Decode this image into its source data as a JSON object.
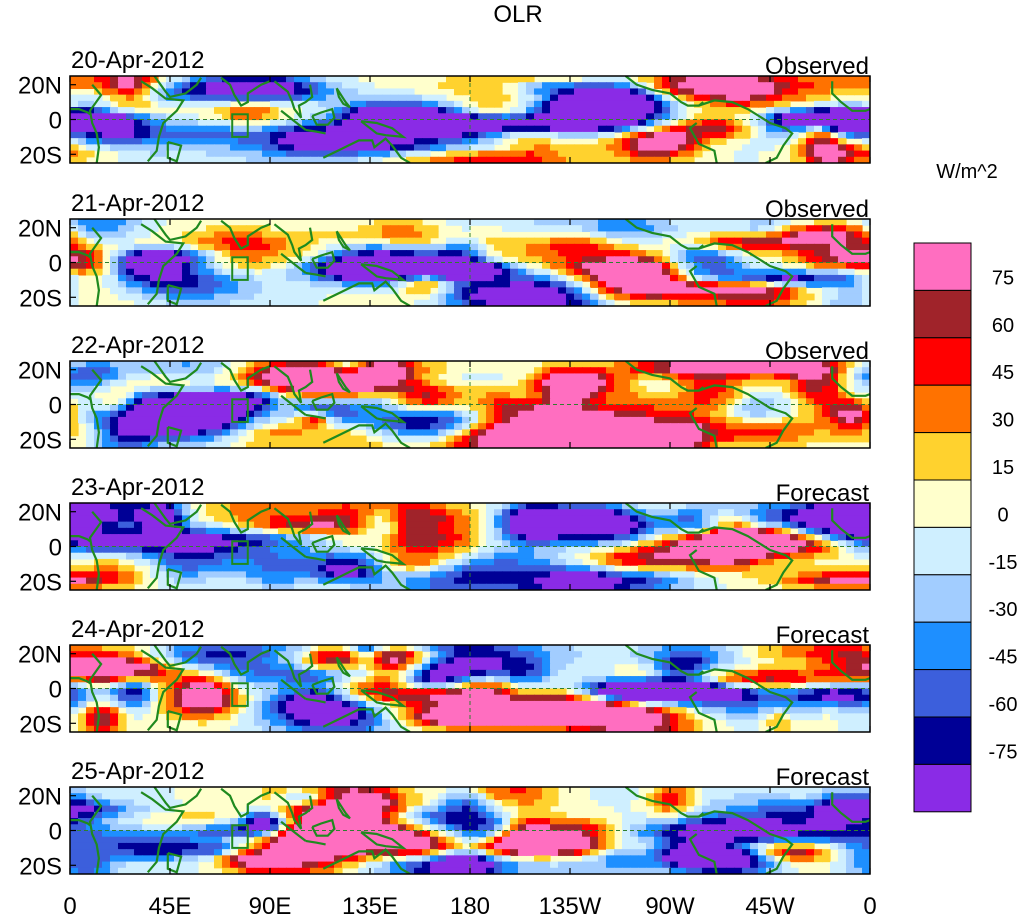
{
  "figure": {
    "title": "OLR",
    "lat_labels": [
      "20N",
      "0",
      "20S"
    ],
    "lon_labels": [
      "0",
      "45E",
      "90E",
      "135E",
      "180",
      "135W",
      "90W",
      "45W",
      "0"
    ]
  },
  "panels": [
    {
      "date": "20-Apr-2012",
      "kind": "Observed"
    },
    {
      "date": "21-Apr-2012",
      "kind": "Observed"
    },
    {
      "date": "22-Apr-2012",
      "kind": "Observed"
    },
    {
      "date": "23-Apr-2012",
      "kind": "Forecast"
    },
    {
      "date": "24-Apr-2012",
      "kind": "Forecast"
    },
    {
      "date": "25-Apr-2012",
      "kind": "Forecast"
    }
  ],
  "colorbar": {
    "units": "W/m^2",
    "labels": [
      "75",
      "60",
      "45",
      "30",
      "15",
      "0",
      "-15",
      "-30",
      "-45",
      "-60",
      "-75"
    ],
    "colors": [
      "#ff6ec0",
      "#a0232a",
      "#ff0000",
      "#ff7200",
      "#ffd22e",
      "#ffffcc",
      "#cfefff",
      "#a2cdff",
      "#1e8fff",
      "#3c5fdc",
      "#000096",
      "#8a2be6"
    ],
    "coast_color": "#1f8a1f",
    "dash_color": "#2f7f2f"
  }
}
